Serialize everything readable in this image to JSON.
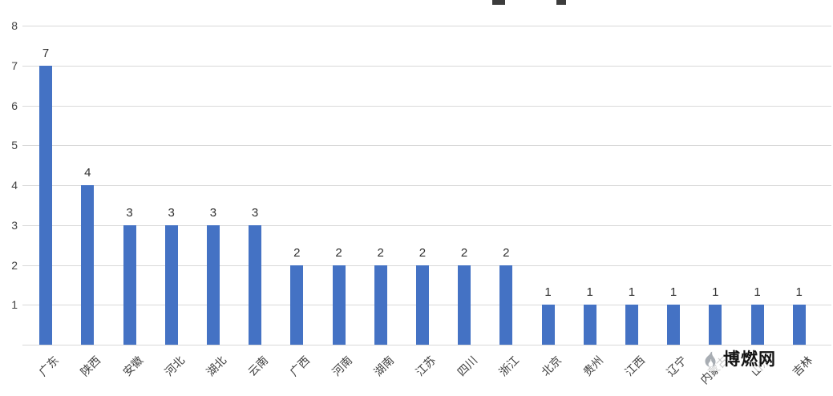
{
  "chart_data": {
    "type": "bar",
    "categories": [
      "广东",
      "陕西",
      "安徽",
      "河北",
      "湖北",
      "云南",
      "广西",
      "河南",
      "湖南",
      "江苏",
      "四川",
      "浙江",
      "北京",
      "贵州",
      "江西",
      "辽宁",
      "内蒙古",
      "山东",
      "吉林"
    ],
    "values": [
      7,
      4,
      3,
      3,
      3,
      3,
      2,
      2,
      2,
      2,
      2,
      2,
      1,
      1,
      1,
      1,
      1,
      1,
      1
    ],
    "title": "",
    "xlabel": "",
    "ylabel": "",
    "ylim": [
      0,
      8
    ],
    "yticks": [
      1,
      2,
      3,
      4,
      5,
      6,
      7,
      8
    ],
    "grid": true,
    "legend": "none",
    "data_labels": true,
    "bar_color": "#4472C4",
    "gridline_color": "#d9d9d9",
    "label_color": "#404040",
    "tick_label_rotation": -45
  },
  "watermark": {
    "text": "博燃网",
    "icon": "flame-icon",
    "icon_color": "#a8adb3"
  }
}
